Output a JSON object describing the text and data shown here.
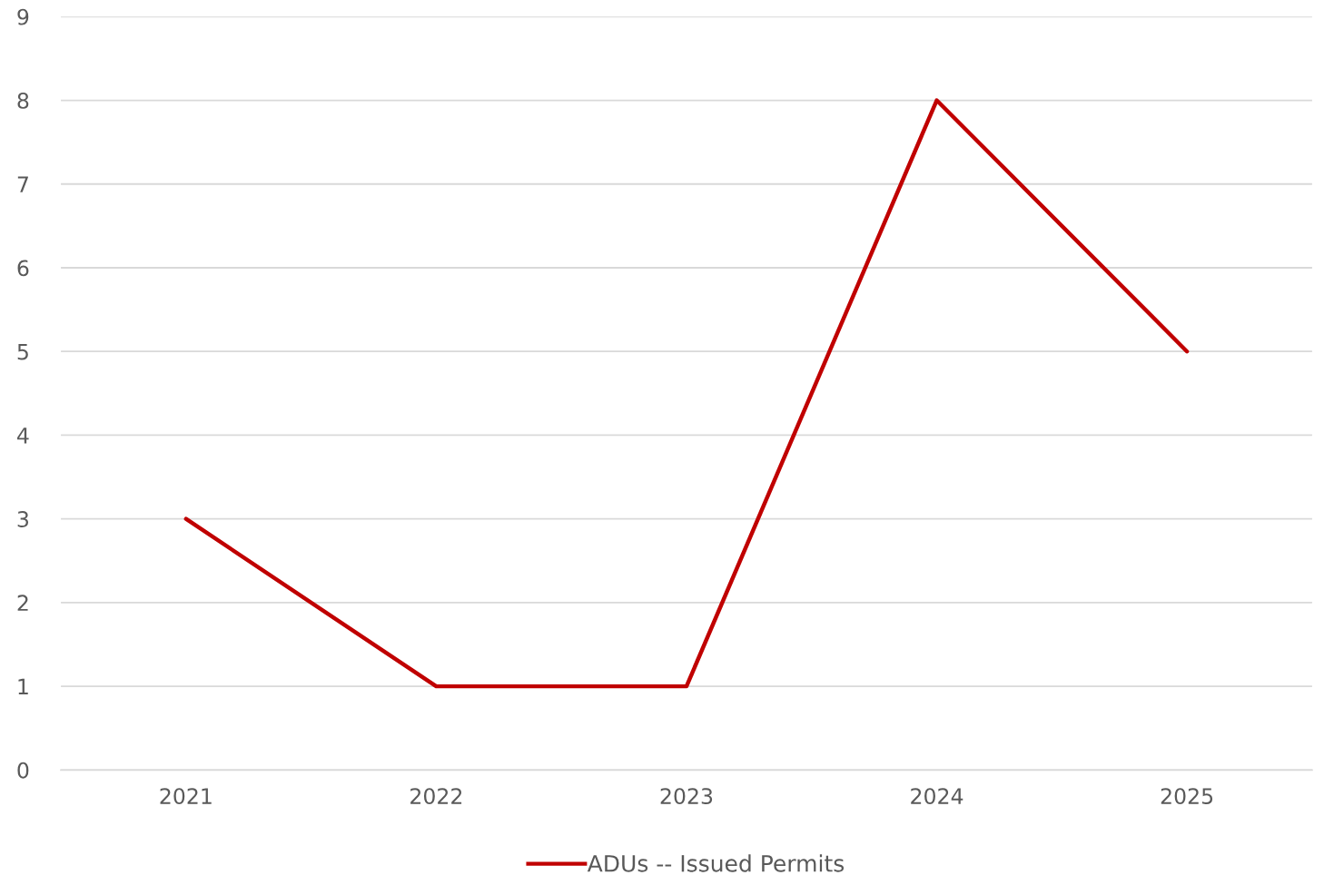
{
  "chart_data": {
    "type": "line",
    "categories": [
      "2021",
      "2022",
      "2023",
      "2024",
      "2025"
    ],
    "series": [
      {
        "name": "ADUs -- Issued Permits",
        "color": "#c00000",
        "values": [
          3,
          1,
          1,
          8,
          5
        ]
      }
    ],
    "ylim": [
      0,
      9
    ],
    "yticks": [
      0,
      1,
      2,
      3,
      4,
      5,
      6,
      7,
      8,
      9
    ],
    "grid": "y",
    "legend": "bottom",
    "marker": "none",
    "line_style": "solid"
  }
}
